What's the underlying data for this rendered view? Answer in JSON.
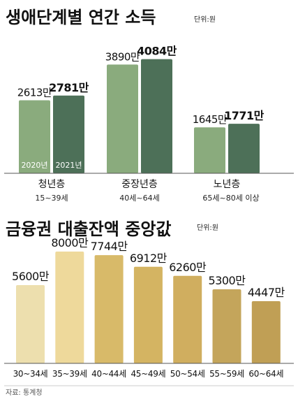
{
  "chart_data": [
    {
      "type": "bar",
      "title": "생애단계별 연간 소득",
      "unit": "단위:원",
      "categories": [
        "청년층",
        "중장년층",
        "노년층"
      ],
      "category_sublabels": [
        "15~39세",
        "40세~64세",
        "65세~80세 이상"
      ],
      "series": [
        {
          "name": "2020년",
          "values": [
            2613,
            3890,
            1645
          ],
          "labels": [
            "2613만",
            "3890만",
            "1645만"
          ],
          "color": "#8aab7d"
        },
        {
          "name": "2021년",
          "values": [
            2781,
            4084,
            1771
          ],
          "labels": [
            "2781만",
            "4084만",
            "1771만"
          ],
          "color": "#4d7058"
        }
      ],
      "legend_placement": "inside-first-group",
      "grid": false
    },
    {
      "type": "bar",
      "title": "금융권 대출잔액 중앙값",
      "unit": "단위:원",
      "categories": [
        "30~34세",
        "35~39세",
        "40~44세",
        "45~49세",
        "50~54세",
        "55~59세",
        "60~64세"
      ],
      "values": [
        5600,
        8000,
        7744,
        6912,
        6260,
        5300,
        4447
      ],
      "labels": [
        "5600만",
        "8000만",
        "7744만",
        "6912만",
        "6260만",
        "5300만",
        "4447만"
      ],
      "colors": [
        "#eddfae",
        "#eed99b",
        "#d8ba69",
        "#d4b462",
        "#d0ae5f",
        "#c4a55b",
        "#c09f55"
      ],
      "grid": false
    }
  ],
  "source": "자료: 통계청"
}
